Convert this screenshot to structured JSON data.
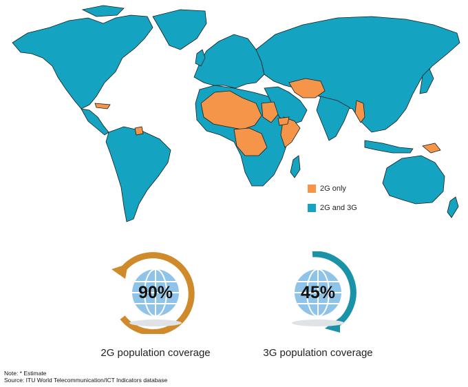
{
  "legend": {
    "items": [
      {
        "label": "2G only",
        "color": "#f5954a"
      },
      {
        "label": "2G and 3G",
        "color": "#14a3c0"
      }
    ]
  },
  "colors": {
    "ocean": "#ffffff",
    "land": "#14a3c0",
    "only2g": "#f5954a",
    "border": "#1b1b1b",
    "ring_2g": "#cf8a2c",
    "ring_3g": "#1a93a8",
    "globe": "#8fc3e8"
  },
  "stats": [
    {
      "percent": "90%",
      "label": "2G population coverage",
      "value_fraction": 0.9
    },
    {
      "percent": "45%",
      "label": "3G population coverage",
      "value_fraction": 0.45
    }
  ],
  "notes": {
    "note": "Note: * Estimate",
    "source": "Source: ITU World Telecommunication/ICT Indicators database"
  }
}
